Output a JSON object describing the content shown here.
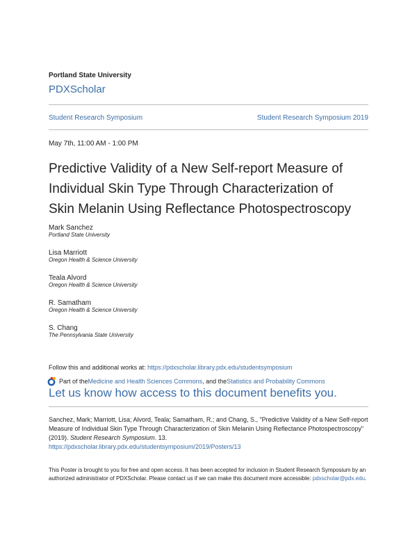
{
  "header": {
    "institution": "Portland State University",
    "repository": "PDXScholar"
  },
  "breadcrumb": {
    "left": "Student Research Symposium",
    "right": "Student Research Symposium 2019"
  },
  "date": "May 7th, 11:00 AM - 1:00 PM",
  "title": [
    "Predictive Validity of a New Self-report Measure of",
    "Individual Skin Type Through Characterization of",
    "Skin Melanin Using Reflectance Photospectroscopy"
  ],
  "authors": [
    {
      "name": "Mark Sanchez",
      "affiliation": "Portland State University"
    },
    {
      "name": "Lisa Marriott",
      "affiliation": "Oregon Health & Science University"
    },
    {
      "name": "Teala Alvord",
      "affiliation": "Oregon Health & Science University"
    },
    {
      "name": "R. Samatham",
      "affiliation": "Oregon Health & Science University"
    },
    {
      "name": "S. Chang",
      "affiliation": "The Pennsylvania State University"
    }
  ],
  "follow": {
    "text": "Follow this and additional works at: ",
    "url": "https://pdxscholar.library.pdx.edu/studentsymposium"
  },
  "partof": {
    "prefix": "Part of the ",
    "link1": "Medicine and Health Sciences Commons",
    "middle": ", and the ",
    "link2": "Statistics and Probability Commons"
  },
  "benefits": "Let us know how access to this document benefits you.",
  "citation": {
    "text": "Sanchez, Mark; Marriott, Lisa; Alvord, Teala; Samatham, R.; and Chang, S., \"Predictive Validity of a New Self-report Measure of Individual Skin Type Through Characterization of Skin Melanin Using Reflectance Photospectroscopy\" (2019). ",
    "journal": "Student Research Symposium",
    "number": ". 13.",
    "url": "https://pdxscholar.library.pdx.edu/studentsymposium/2019/Posters/13"
  },
  "notice": {
    "text": "This Poster is brought to you for free and open access. It has been accepted for inclusion in Student Research Symposium by an authorized administrator of PDXScholar. Please contact us if we can make this document more accessible: ",
    "email": "pdxscholar@pdx.edu",
    "end": "."
  }
}
